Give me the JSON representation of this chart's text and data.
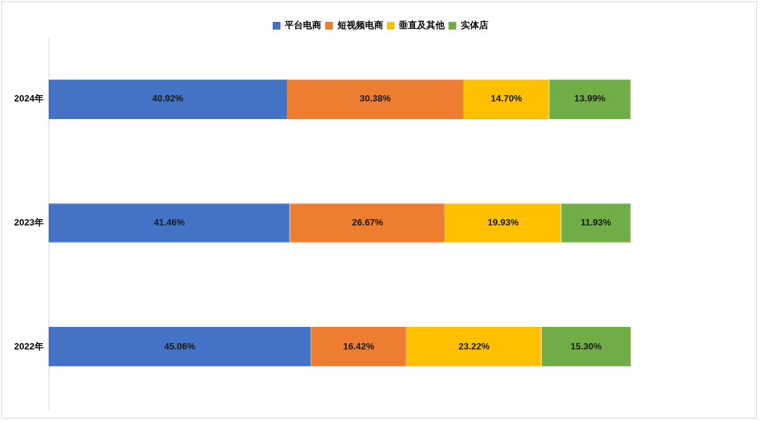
{
  "chart_data": {
    "type": "bar",
    "orientation": "horizontal",
    "stacked": true,
    "categories": [
      "2024年",
      "2023年",
      "2022年"
    ],
    "series": [
      {
        "name": "平台电商",
        "color": "#4472c4",
        "values": [
          40.92,
          41.46,
          45.06
        ],
        "value_labels": [
          "40.92%",
          "41.46%",
          "45.06%"
        ]
      },
      {
        "name": "短视频电商",
        "color": "#ed7d31",
        "values": [
          30.38,
          26.67,
          16.42
        ],
        "value_labels": [
          "30.38%",
          "26.67%",
          "16.42%"
        ]
      },
      {
        "name": "垂直及其他",
        "color": "#ffc000",
        "values": [
          14.7,
          19.93,
          23.22
        ],
        "value_labels": [
          "14.70%",
          "19.93%",
          "23.22%"
        ]
      },
      {
        "name": "实体店",
        "color": "#70ad47",
        "values": [
          13.99,
          11.93,
          15.3
        ],
        "value_labels": [
          "13.99%",
          "11.93%",
          "15.30%"
        ]
      }
    ],
    "tick_labels": "y",
    "grid": false,
    "legend": "top"
  }
}
